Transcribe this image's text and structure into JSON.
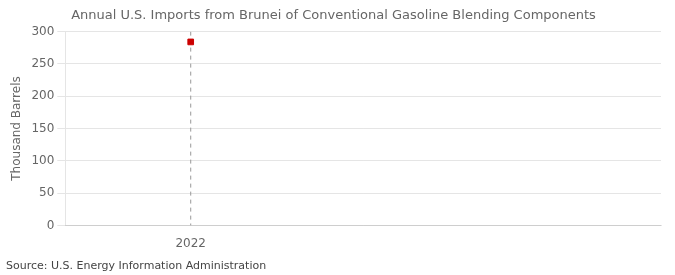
{
  "chart_data": {
    "type": "scatter",
    "title": "Annual U.S. Imports from Brunei of Conventional Gasoline Blending Components",
    "ylabel": "Thousand Barrels",
    "source": "Source: U.S. Energy Information Administration",
    "x": [
      2022
    ],
    "values": [
      284
    ],
    "color": "#cc0000",
    "marker": "square",
    "xlim": [
      2021.6,
      2023.5
    ],
    "xticks": [
      2022
    ],
    "ylim": [
      0,
      300
    ],
    "yticks": [
      0,
      50,
      100,
      150,
      200,
      250,
      300
    ],
    "grid": "y",
    "vline": 2022
  }
}
